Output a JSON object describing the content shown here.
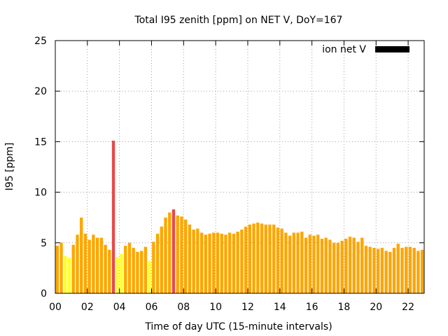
{
  "chart_data": {
    "type": "bar",
    "title": "Total I95 zenith [ppm] on NET V, DoY=167",
    "xlabel": "Time of day UTC (15-minute intervals)",
    "ylabel": "I95 [ppm]",
    "xlim": [
      0,
      23
    ],
    "ylim": [
      0,
      25
    ],
    "grid": true,
    "legend_position": "top-right",
    "x_ticks": [
      {
        "value": 0,
        "label": "00"
      },
      {
        "value": 2,
        "label": "02"
      },
      {
        "value": 4,
        "label": "04"
      },
      {
        "value": 6,
        "label": "06"
      },
      {
        "value": 8,
        "label": "08"
      },
      {
        "value": 10,
        "label": "10"
      },
      {
        "value": 12,
        "label": "12"
      },
      {
        "value": 14,
        "label": "14"
      },
      {
        "value": 16,
        "label": "16"
      },
      {
        "value": 18,
        "label": "18"
      },
      {
        "value": 20,
        "label": "20"
      },
      {
        "value": 22,
        "label": "22"
      }
    ],
    "y_ticks": [
      {
        "value": 0,
        "label": "0"
      },
      {
        "value": 5,
        "label": "5"
      },
      {
        "value": 10,
        "label": "10"
      },
      {
        "value": 15,
        "label": "15"
      },
      {
        "value": 20,
        "label": "20"
      },
      {
        "value": 25,
        "label": "25"
      }
    ],
    "series": [
      {
        "name": "ion net V",
        "legend_color": "#000000",
        "bar_width": 0.19,
        "colors": {
          "low": "#ffff33",
          "normal": "#ffa500",
          "high": "#e84a4a"
        },
        "x": [
          0.125,
          0.375,
          0.625,
          0.875,
          1.125,
          1.375,
          1.625,
          1.875,
          2.125,
          2.375,
          2.625,
          2.875,
          3.125,
          3.375,
          3.625,
          3.875,
          4.125,
          4.375,
          4.625,
          4.875,
          5.125,
          5.375,
          5.625,
          5.875,
          6.125,
          6.375,
          6.625,
          6.875,
          7.125,
          7.375,
          7.625,
          7.875,
          8.125,
          8.375,
          8.625,
          8.875,
          9.125,
          9.375,
          9.625,
          9.875,
          10.125,
          10.375,
          10.625,
          10.875,
          11.125,
          11.375,
          11.625,
          11.875,
          12.125,
          12.375,
          12.625,
          12.875,
          13.125,
          13.375,
          13.625,
          13.875,
          14.125,
          14.375,
          14.625,
          14.875,
          15.125,
          15.375,
          15.625,
          15.875,
          16.125,
          16.375,
          16.625,
          16.875,
          17.125,
          17.375,
          17.625,
          17.875,
          18.125,
          18.375,
          18.625,
          18.875,
          19.125,
          19.375,
          19.625,
          19.875,
          20.125,
          20.375,
          20.625,
          20.875,
          21.125,
          21.375,
          21.625,
          21.875,
          22.125,
          22.375,
          22.625,
          22.875
        ],
        "values": [
          4.7,
          5.0,
          3.7,
          3.5,
          4.8,
          5.8,
          7.5,
          5.9,
          5.3,
          5.8,
          5.5,
          5.5,
          4.8,
          4.3,
          15.1,
          3.6,
          3.9,
          4.7,
          5.0,
          4.5,
          4.1,
          4.2,
          4.6,
          3.2,
          5.1,
          5.9,
          6.6,
          7.5,
          8.0,
          8.3,
          7.7,
          7.6,
          7.3,
          6.8,
          6.3,
          6.4,
          6.0,
          5.8,
          5.9,
          6.0,
          6.0,
          5.9,
          5.8,
          6.0,
          5.9,
          6.1,
          6.3,
          6.6,
          6.8,
          6.9,
          7.0,
          6.9,
          6.8,
          6.8,
          6.8,
          6.5,
          6.4,
          6.0,
          5.7,
          6.0,
          6.0,
          6.1,
          5.5,
          5.8,
          5.7,
          5.8,
          5.4,
          5.5,
          5.3,
          5.0,
          5.0,
          5.2,
          5.4,
          5.6,
          5.5,
          5.1,
          5.5,
          4.7,
          4.6,
          4.5,
          4.4,
          4.5,
          4.2,
          4.1,
          4.5,
          4.9,
          4.5,
          4.6,
          4.6,
          4.5,
          4.2,
          4.3
        ],
        "levels": [
          "normal",
          "normal",
          "low",
          "low",
          "normal",
          "normal",
          "normal",
          "normal",
          "normal",
          "normal",
          "normal",
          "normal",
          "normal",
          "normal",
          "high",
          "low",
          "low",
          "normal",
          "normal",
          "normal",
          "normal",
          "normal",
          "normal",
          "low",
          "normal",
          "normal",
          "normal",
          "normal",
          "normal",
          "high",
          "normal",
          "normal",
          "normal",
          "normal",
          "normal",
          "normal",
          "normal",
          "normal",
          "normal",
          "normal",
          "normal",
          "normal",
          "normal",
          "normal",
          "normal",
          "normal",
          "normal",
          "normal",
          "normal",
          "normal",
          "normal",
          "normal",
          "normal",
          "normal",
          "normal",
          "normal",
          "normal",
          "normal",
          "normal",
          "normal",
          "normal",
          "normal",
          "normal",
          "normal",
          "normal",
          "normal",
          "normal",
          "normal",
          "normal",
          "normal",
          "normal",
          "normal",
          "normal",
          "normal",
          "normal",
          "normal",
          "normal",
          "normal",
          "normal",
          "normal",
          "normal",
          "normal",
          "normal",
          "normal",
          "normal",
          "normal",
          "normal",
          "normal",
          "normal",
          "normal",
          "normal",
          "normal"
        ]
      }
    ]
  }
}
